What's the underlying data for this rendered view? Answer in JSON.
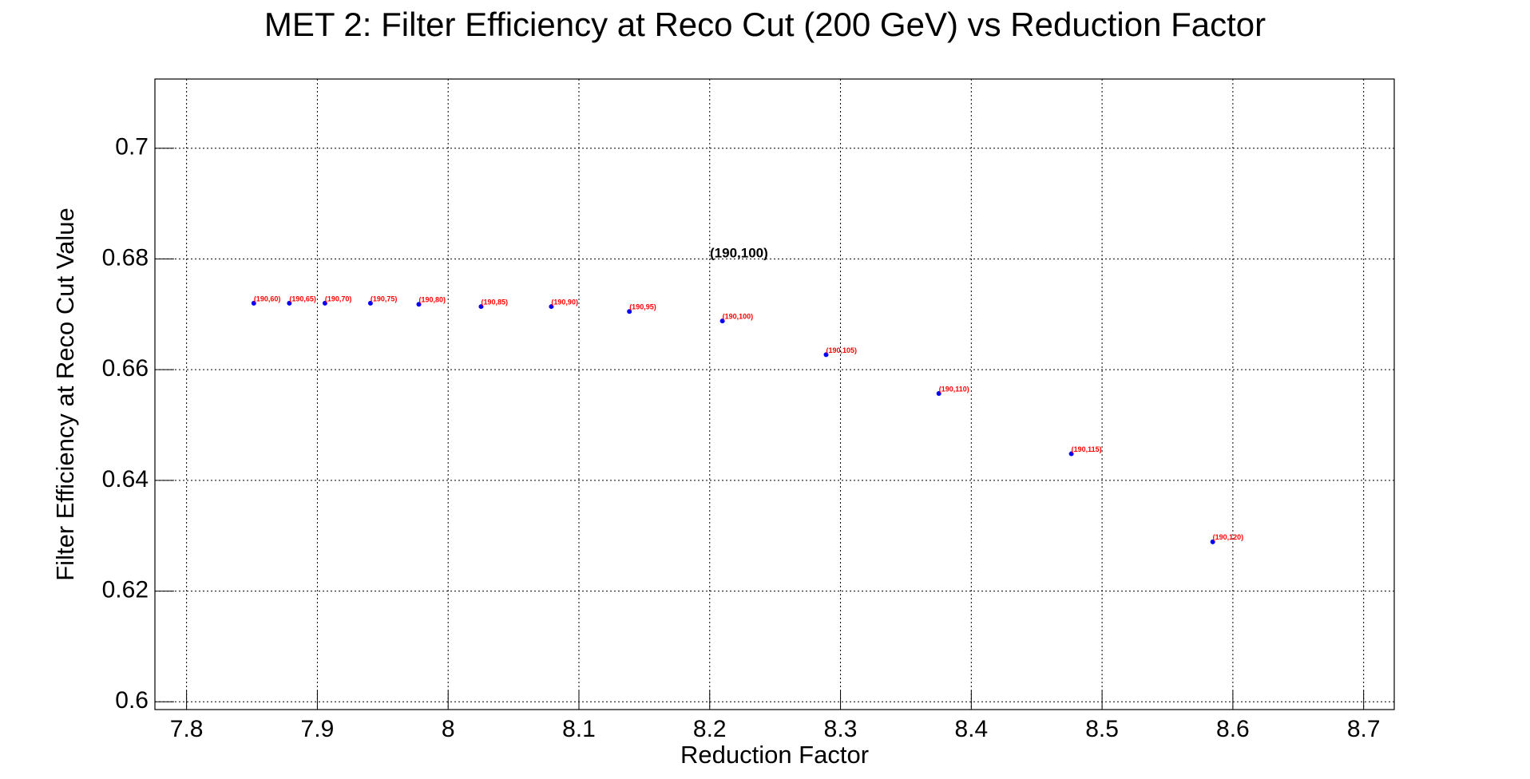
{
  "chart_data": {
    "type": "scatter",
    "title": "MET 2: Filter Efficiency at Reco Cut (200 GeV) vs Reduction Factor",
    "x_label": "Reduction Factor",
    "y_label": "Filter Efficiency at Reco Cut Value",
    "x": [
      7.8514,
      7.8786,
      7.9058,
      7.9406,
      7.9776,
      8.0252,
      8.0789,
      8.1386,
      8.2097,
      8.289,
      8.3752,
      8.4765,
      8.5846
    ],
    "values": [
      0.672,
      0.672,
      0.672,
      0.672,
      0.6718,
      0.6714,
      0.6714,
      0.6705,
      0.6688,
      0.6627,
      0.6557,
      0.6448,
      0.6289
    ],
    "point_labels": [
      "(190,60)",
      "(190,65)",
      "(190,70)",
      "(190,75)",
      "(190,80)",
      "(190,85)",
      "(190,90)",
      "(190,95)",
      "(190,100)",
      "(190,105)",
      "(190,110)",
      "(190,115)",
      "(190,120)"
    ],
    "annotation": "(190,100)",
    "color": "#0000ff",
    "label_color": "#ff0000",
    "xlim": [
      7.7758,
      8.7234
    ],
    "ylim": [
      0.5986,
      0.7125
    ],
    "xticks": [
      7.8,
      7.9,
      8,
      8.1,
      8.2,
      8.3,
      8.4,
      8.5,
      8.6,
      8.7
    ],
    "yticks": [
      0.6,
      0.62,
      0.64,
      0.66,
      0.68,
      0.7
    ],
    "grid": true
  }
}
